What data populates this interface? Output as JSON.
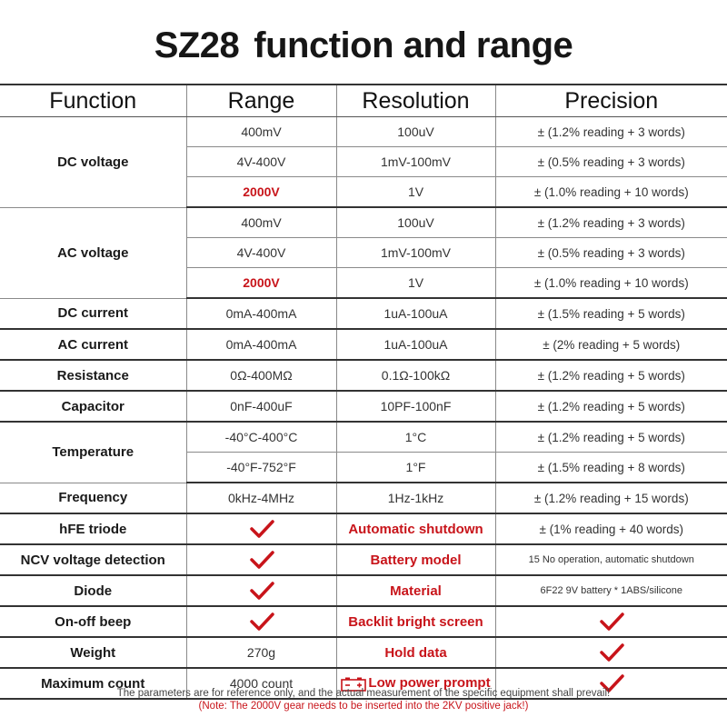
{
  "title": {
    "model": "SZ28",
    "text": "function and range"
  },
  "headers": [
    "Function",
    "Range",
    "Resolution",
    "Precision"
  ],
  "rows": {
    "dcv_label": "DC voltage",
    "dcv1": {
      "range": "400mV",
      "res": "100uV",
      "prec": "± (1.2% reading + 3 words)"
    },
    "dcv2": {
      "range": "4V-400V",
      "res": "1mV-100mV",
      "prec": "± (0.5% reading + 3 words)"
    },
    "dcv3": {
      "range": "2000V",
      "res": "1V",
      "prec": "± (1.0% reading + 10 words)"
    },
    "acv_label": "AC voltage",
    "acv1": {
      "range": "400mV",
      "res": "100uV",
      "prec": "± (1.2% reading + 3 words)"
    },
    "acv2": {
      "range": "4V-400V",
      "res": "1mV-100mV",
      "prec": "± (0.5% reading + 3 words)"
    },
    "acv3": {
      "range": "2000V",
      "res": "1V",
      "prec": "± (1.0% reading + 10 words)"
    },
    "dci": {
      "func": "DC current",
      "range": "0mA-400mA",
      "res": "1uA-100uA",
      "prec": "± (1.5% reading + 5 words)"
    },
    "aci": {
      "func": "AC current",
      "range": "0mA-400mA",
      "res": "1uA-100uA",
      "prec": "± (2% reading + 5 words)"
    },
    "res": {
      "func": "Resistance",
      "range": "0Ω-400MΩ",
      "res": "0.1Ω-100kΩ",
      "prec": "± (1.2% reading + 5 words)"
    },
    "cap": {
      "func": "Capacitor",
      "range": "0nF-400uF",
      "res": "10PF-100nF",
      "prec": "± (1.2% reading + 5 words)"
    },
    "temp_label": "Temperature",
    "temp1": {
      "range": "-40°C-400°C",
      "res": "1°C",
      "prec": "± (1.2% reading + 5 words)"
    },
    "temp2": {
      "range": "-40°F-752°F",
      "res": "1°F",
      "prec": "± (1.5% reading + 8 words)"
    },
    "freq": {
      "func": "Frequency",
      "range": "0kHz-4MHz",
      "res": "1Hz-1kHz",
      "prec": "± (1.2% reading + 15 words)"
    },
    "hfe": {
      "func": "hFE triode",
      "feature": "Automatic shutdown",
      "value": "± (1% reading + 40 words)"
    },
    "ncv": {
      "func": "NCV voltage detection",
      "feature": "Battery model",
      "value": "15 No operation, automatic shutdown"
    },
    "diode": {
      "func": "Diode",
      "feature": "Material",
      "value": "6F22 9V battery * 1ABS/silicone"
    },
    "beep": {
      "func": "On-off beep",
      "feature": "Backlit bright screen"
    },
    "weight": {
      "func": "Weight",
      "range": "270g",
      "feature": "Hold data"
    },
    "maxc": {
      "func": "Maximum count",
      "range": "4000 count",
      "feature": "Low power prompt"
    }
  },
  "footer": {
    "line1": "The parameters are for reference only, and the actual measurement of the specific equipment shall prevail!",
    "line2": "(Note: The 2000V gear needs to be inserted into the 2KV positive jack!)"
  },
  "colors": {
    "accent_red": "#c8141a",
    "text": "#1a1a1a",
    "grid": "#8a8a8a"
  },
  "icons": {
    "check": "check-icon",
    "battery": "battery-icon"
  }
}
